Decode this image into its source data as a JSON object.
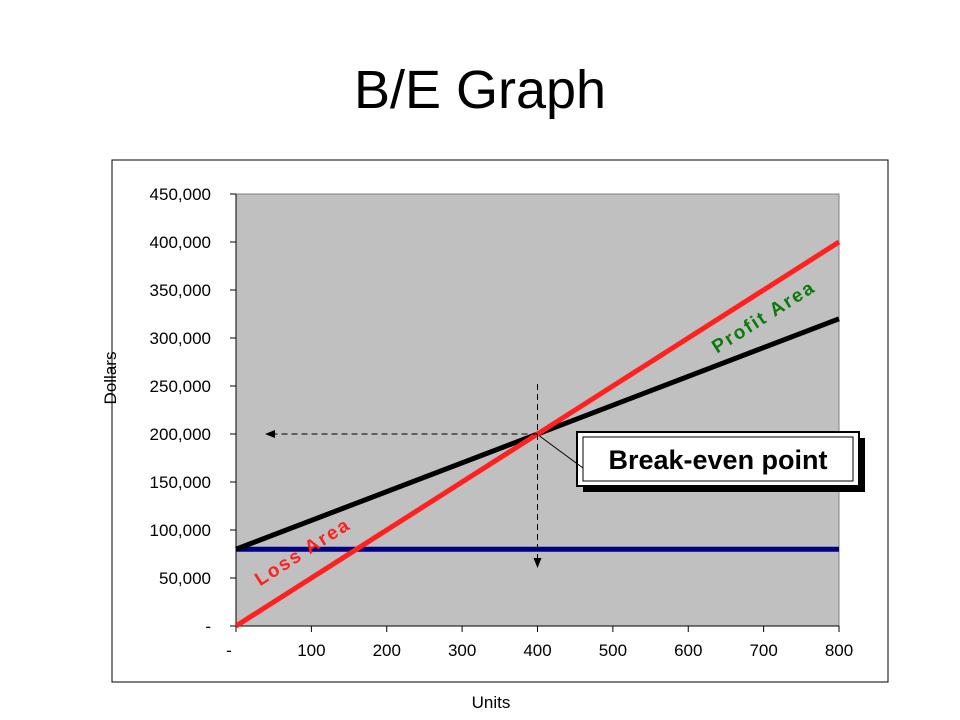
{
  "page": {
    "title": "B/E Graph"
  },
  "chart_data": {
    "type": "line",
    "xlabel": "Units",
    "ylabel": "Dollars",
    "xlim": [
      0,
      800
    ],
    "ylim": [
      0,
      450000
    ],
    "x_ticks": [
      0,
      100,
      200,
      300,
      400,
      500,
      600,
      700,
      800
    ],
    "x_tick_labels": [
      "-",
      "100",
      "200",
      "300",
      "400",
      "500",
      "600",
      "700",
      "800"
    ],
    "y_ticks": [
      0,
      50000,
      100000,
      150000,
      200000,
      250000,
      300000,
      350000,
      400000,
      450000
    ],
    "y_tick_labels": [
      "-",
      "50,000",
      "100,000",
      "150,000",
      "200,000",
      "250,000",
      "300,000",
      "350,000",
      "400,000",
      "450,000"
    ],
    "plot_background": "#c0c0c0",
    "grid": false,
    "legend": "none",
    "series": [
      {
        "color": "#ff2020",
        "x": [
          0,
          800
        ],
        "values": [
          0,
          400000
        ]
      },
      {
        "color": "#000000",
        "x": [
          0,
          800
        ],
        "values": [
          80000,
          320000
        ]
      },
      {
        "color": "#000080",
        "x": [
          0,
          800
        ],
        "values": [
          80000,
          80000
        ]
      }
    ],
    "break_even": {
      "x": 400,
      "y": 200000
    },
    "annotations": {
      "profit_area": "Profit Area",
      "loss_area": "Loss Area",
      "break_even": "Break-even point"
    },
    "colors": {
      "profit": "#0a7a0a",
      "loss": "#ff2020"
    }
  }
}
